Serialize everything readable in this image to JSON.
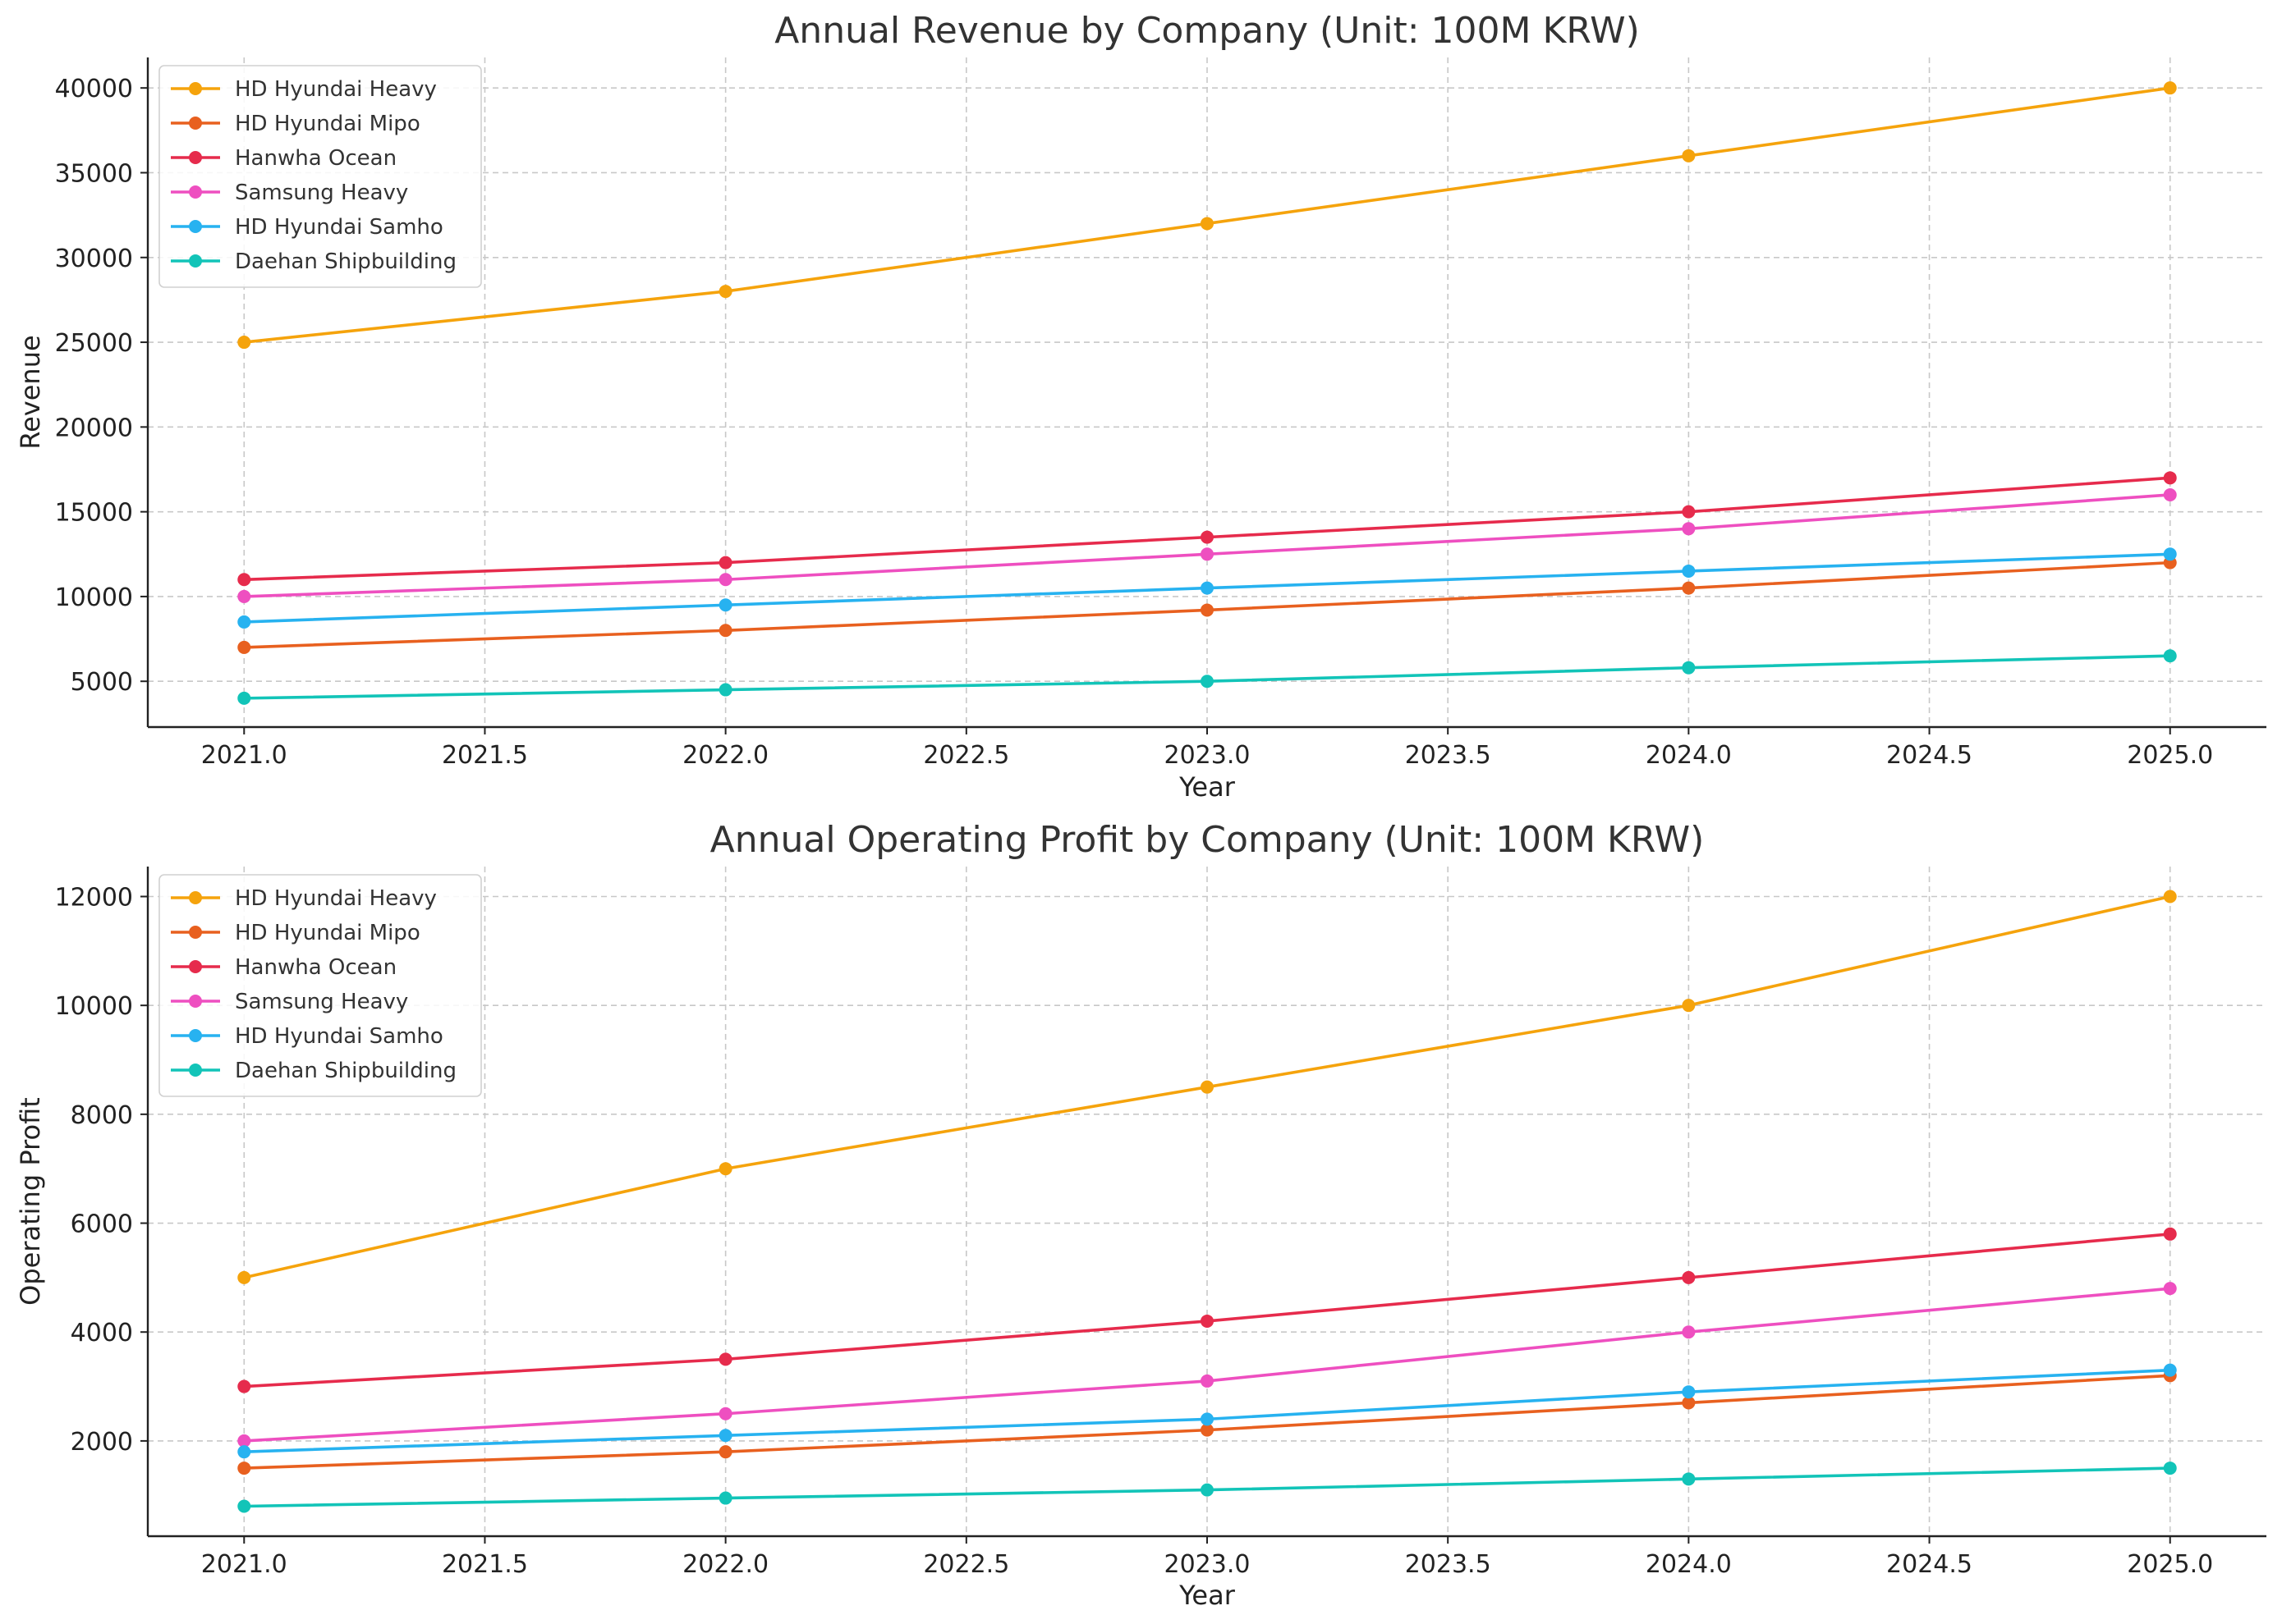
{
  "chart_data": [
    {
      "type": "line",
      "title": "Annual Revenue by Company (Unit: 100M KRW)",
      "xlabel": "Year",
      "ylabel": "Revenue",
      "x": [
        2021,
        2022,
        2023,
        2024,
        2025
      ],
      "xlim": [
        2020.8,
        2025.2
      ],
      "ylim": [
        2300,
        41800
      ],
      "xticks": [
        "2021.0",
        "2021.5",
        "2022.0",
        "2022.5",
        "2023.0",
        "2023.5",
        "2024.0",
        "2024.5",
        "2025.0"
      ],
      "yticks": [
        "5000",
        "10000",
        "15000",
        "20000",
        "25000",
        "30000",
        "35000",
        "40000"
      ],
      "grid": true,
      "legend_position": "upper-left",
      "series": [
        {
          "name": "HD Hyundai Heavy",
          "color": "#f5a30c",
          "values": [
            25000,
            28000,
            32000,
            36000,
            40000
          ]
        },
        {
          "name": "HD Hyundai Mipo",
          "color": "#e8601f",
          "values": [
            7000,
            8000,
            9200,
            10500,
            12000
          ]
        },
        {
          "name": "Hanwha Ocean",
          "color": "#e62b4c",
          "values": [
            11000,
            12000,
            13500,
            15000,
            17000
          ]
        },
        {
          "name": "Samsung Heavy",
          "color": "#ee4fc0",
          "values": [
            10000,
            11000,
            12500,
            14000,
            16000
          ]
        },
        {
          "name": "HD Hyundai Samho",
          "color": "#27b2f0",
          "values": [
            8500,
            9500,
            10500,
            11500,
            12500
          ]
        },
        {
          "name": "Daehan Shipbuilding",
          "color": "#12c4b8",
          "values": [
            4000,
            4500,
            5000,
            5800,
            6500
          ]
        }
      ]
    },
    {
      "type": "line",
      "title": "Annual Operating Profit by Company (Unit: 100M KRW)",
      "xlabel": "Year",
      "ylabel": "Operating Profit",
      "x": [
        2021,
        2022,
        2023,
        2024,
        2025
      ],
      "xlim": [
        2020.8,
        2025.2
      ],
      "ylim": [
        250,
        12550
      ],
      "xticks": [
        "2021.0",
        "2021.5",
        "2022.0",
        "2022.5",
        "2023.0",
        "2023.5",
        "2024.0",
        "2024.5",
        "2025.0"
      ],
      "yticks": [
        "2000",
        "4000",
        "6000",
        "8000",
        "10000",
        "12000"
      ],
      "grid": true,
      "legend_position": "upper-left",
      "series": [
        {
          "name": "HD Hyundai Heavy",
          "color": "#f5a30c",
          "values": [
            5000,
            7000,
            8500,
            10000,
            12000
          ]
        },
        {
          "name": "HD Hyundai Mipo",
          "color": "#e8601f",
          "values": [
            1500,
            1800,
            2200,
            2700,
            3200
          ]
        },
        {
          "name": "Hanwha Ocean",
          "color": "#e62b4c",
          "values": [
            3000,
            3500,
            4200,
            5000,
            5800
          ]
        },
        {
          "name": "Samsung Heavy",
          "color": "#ee4fc0",
          "values": [
            2000,
            2500,
            3100,
            4000,
            4800
          ]
        },
        {
          "name": "HD Hyundai Samho",
          "color": "#27b2f0",
          "values": [
            1800,
            2100,
            2400,
            2900,
            3300
          ]
        },
        {
          "name": "Daehan Shipbuilding",
          "color": "#12c4b8",
          "values": [
            800,
            950,
            1100,
            1300,
            1500
          ]
        }
      ]
    }
  ]
}
